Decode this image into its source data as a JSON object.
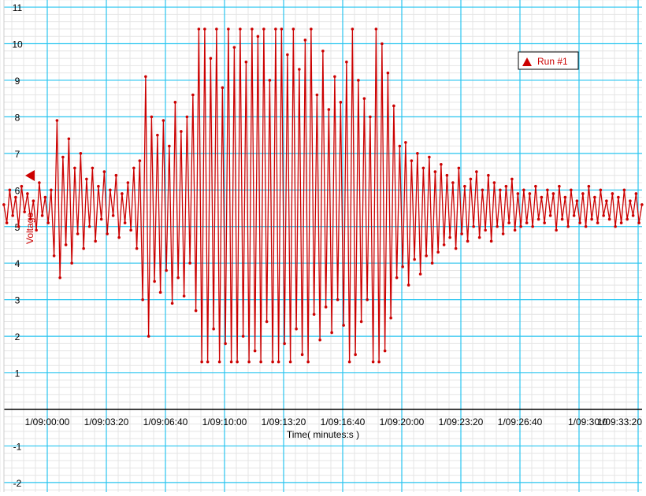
{
  "chart_data": {
    "type": "line",
    "xlabel": "Time( minutes:s )",
    "ylabel": "Voltage",
    "ylim": [
      -2,
      11
    ],
    "yticks": [
      "-2",
      "-1",
      "1",
      "2",
      "3",
      "4",
      "5",
      "6",
      "7",
      "8",
      "9",
      "10",
      "11"
    ],
    "xticks": [
      "1/09:00:00",
      "1/09:03:20",
      "1/09:06:40",
      "1/09:10:00",
      "1/09:13:20",
      "1/09:16:40",
      "1/09:20:00",
      "1/09:23:20",
      "1/09:26:40",
      "1/09:30:0",
      "1/09:33:20"
    ],
    "grid": true,
    "legend_position": "top-right",
    "series": [
      {
        "name": "Run #1",
        "color": "#cc0000",
        "marker": "dot",
        "start_time": "1/08:57:33",
        "interval_s": 10,
        "values": [
          5.6,
          5.1,
          6.0,
          5.3,
          5.8,
          5.0,
          6.1,
          5.4,
          5.9,
          5.2,
          5.7,
          4.9,
          6.2,
          5.3,
          5.8,
          5.1,
          6.0,
          4.2,
          7.9,
          3.6,
          6.9,
          4.5,
          7.4,
          4.0,
          6.6,
          4.8,
          7.0,
          4.4,
          6.3,
          5.0,
          6.6,
          4.6,
          6.1,
          5.2,
          6.5,
          4.8,
          6.0,
          5.3,
          6.4,
          4.7,
          5.9,
          5.1,
          6.2,
          4.9,
          6.6,
          4.4,
          6.8,
          3.0,
          9.1,
          2.0,
          8.0,
          3.5,
          7.5,
          3.2,
          7.9,
          3.8,
          7.2,
          2.9,
          8.4,
          3.6,
          7.6,
          3.1,
          8.0,
          4.0,
          8.6,
          2.7,
          10.4,
          1.3,
          10.4,
          1.3,
          9.6,
          2.2,
          10.4,
          1.3,
          8.8,
          1.8,
          10.4,
          1.3,
          9.9,
          1.3,
          10.4,
          2.0,
          9.5,
          1.3,
          10.4,
          1.6,
          10.2,
          1.3,
          10.4,
          2.4,
          9.0,
          1.3,
          10.4,
          1.3,
          10.4,
          1.8,
          9.7,
          1.3,
          10.4,
          2.2,
          9.3,
          1.5,
          10.1,
          1.3,
          10.4,
          2.6,
          8.6,
          1.9,
          9.8,
          2.8,
          8.2,
          2.1,
          9.1,
          3.0,
          8.4,
          2.3,
          9.5,
          1.3,
          10.4,
          1.5,
          9.0,
          2.4,
          8.5,
          3.0,
          8.0,
          1.3,
          10.4,
          1.3,
          10.0,
          1.6,
          9.2,
          2.5,
          8.3,
          3.6,
          7.2,
          3.9,
          7.3,
          3.4,
          6.8,
          4.1,
          7.0,
          3.7,
          6.6,
          4.2,
          6.9,
          4.0,
          6.5,
          4.3,
          6.7,
          4.5,
          6.4,
          4.7,
          6.2,
          4.4,
          6.6,
          4.8,
          6.1,
          4.6,
          6.3,
          5.0,
          6.5,
          4.7,
          6.0,
          4.9,
          6.4,
          4.6,
          6.2,
          5.0,
          6.0,
          4.8,
          6.1,
          5.1,
          6.3,
          4.9,
          5.9,
          5.0,
          6.0,
          5.1,
          5.9,
          5.0,
          6.1,
          5.2,
          5.8,
          5.1,
          6.0,
          5.3,
          5.9,
          4.9,
          6.1,
          5.2,
          5.8,
          5.0,
          6.0,
          5.3,
          5.7,
          5.1,
          5.9,
          5.0,
          6.1,
          5.2,
          5.8,
          5.1,
          6.0,
          5.3,
          5.7,
          5.2,
          5.9,
          5.0,
          5.8,
          5.1,
          6.0,
          5.2,
          5.7,
          5.3,
          5.9,
          5.1,
          5.6
        ]
      }
    ]
  },
  "colors": {
    "major_grid": "#29c5f0",
    "minor_grid": "#e4e4e4",
    "series": "#cc0000"
  }
}
